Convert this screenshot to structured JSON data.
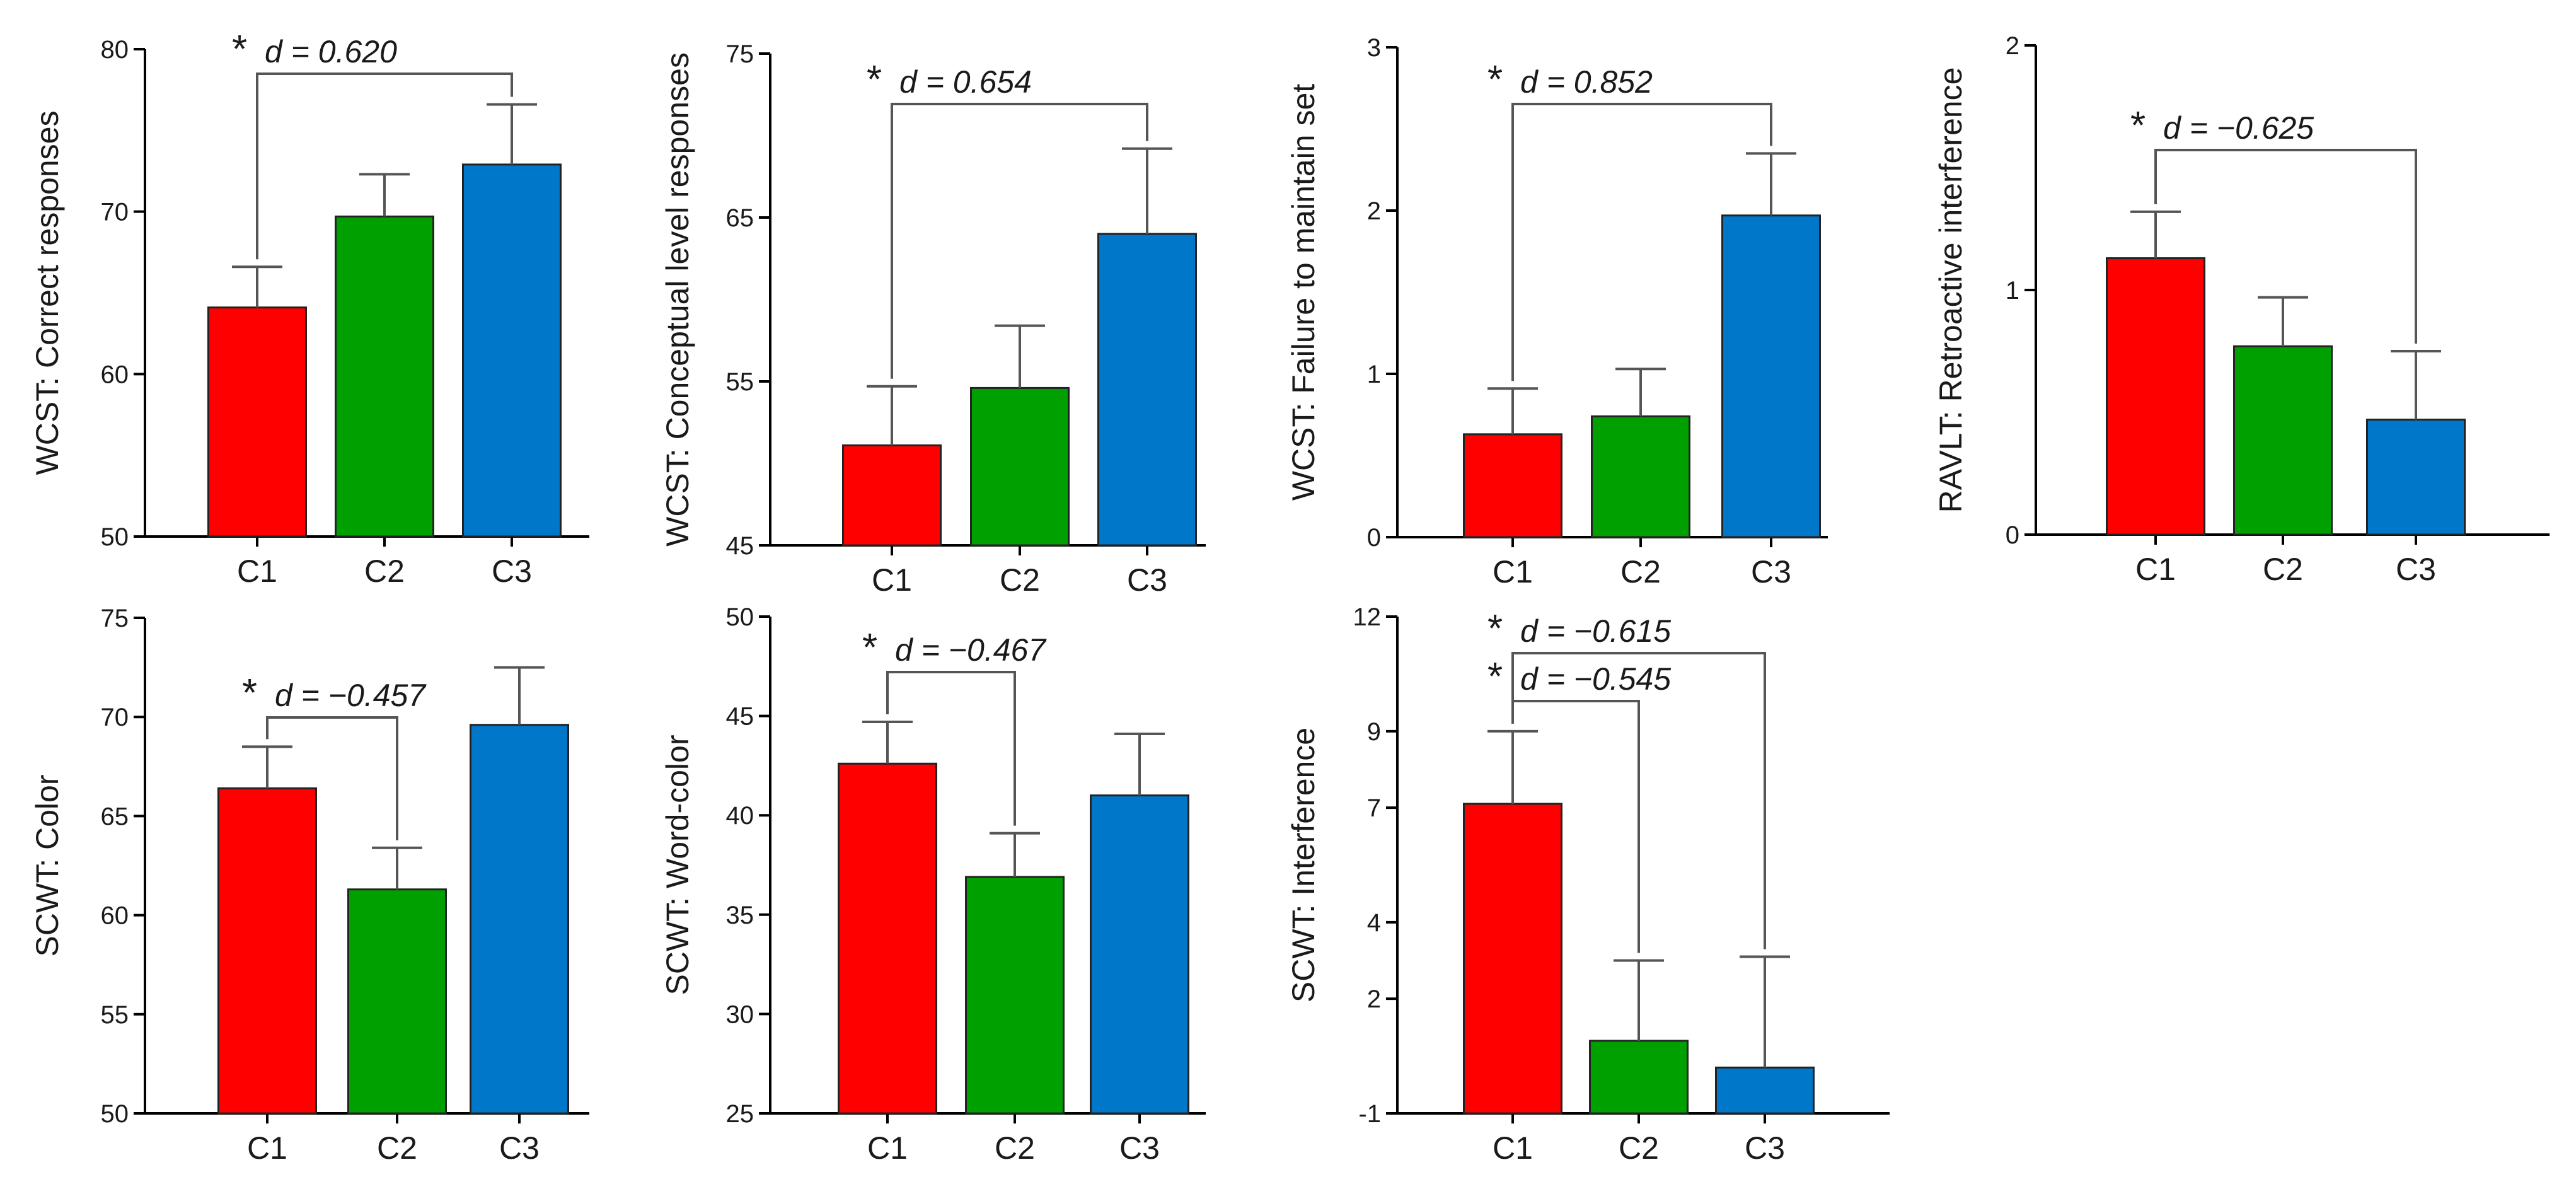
{
  "colors": {
    "C1": "#ff0000",
    "C2": "#00a000",
    "C3": "#0077c8",
    "axis": "#000000",
    "bracket": "#555555",
    "errorbar": "#555555"
  },
  "chart_data": [
    {
      "id": "wcst-correct",
      "type": "bar",
      "title": "",
      "ylabel": "WCST: Correct responses",
      "ylim": [
        50,
        80
      ],
      "yticks": [
        50,
        60,
        70,
        80
      ],
      "categories": [
        "C1",
        "C2",
        "C3"
      ],
      "values": [
        64.1,
        69.7,
        72.9
      ],
      "errors": [
        2.5,
        2.6,
        3.7
      ],
      "significance": [
        {
          "from": 0,
          "to": 2,
          "star": "*",
          "label": "d = 0.620"
        }
      ]
    },
    {
      "id": "wcst-conceptual",
      "type": "bar",
      "title": "",
      "ylabel": "WCST: Conceptual level responses",
      "ylim": [
        45,
        75
      ],
      "yticks": [
        45,
        55,
        65,
        75
      ],
      "categories": [
        "C1",
        "C2",
        "C3"
      ],
      "values": [
        51.1,
        54.6,
        64.0
      ],
      "errors": [
        3.6,
        3.8,
        5.2
      ],
      "significance": [
        {
          "from": 0,
          "to": 2,
          "star": "*",
          "label": "d = 0.654"
        }
      ]
    },
    {
      "id": "wcst-failure",
      "type": "bar",
      "title": "",
      "ylabel": "WCST: Failure to maintain set",
      "ylim": [
        0,
        3
      ],
      "yticks": [
        0,
        1,
        2,
        3
      ],
      "categories": [
        "C1",
        "C2",
        "C3"
      ],
      "values": [
        0.63,
        0.74,
        1.97
      ],
      "errors": [
        0.28,
        0.29,
        0.38
      ],
      "significance": [
        {
          "from": 0,
          "to": 2,
          "star": "*",
          "label": "d = 0.852"
        }
      ]
    },
    {
      "id": "ravlt-retroactive",
      "type": "bar",
      "title": "",
      "ylabel": "RAVLT: Retroactive interference",
      "ylim": [
        0,
        2
      ],
      "yticks": [
        0,
        1,
        2
      ],
      "categories": [
        "C1",
        "C2",
        "C3"
      ],
      "values": [
        1.13,
        0.77,
        0.47
      ],
      "errors": [
        0.19,
        0.2,
        0.28
      ],
      "significance": [
        {
          "from": 0,
          "to": 2,
          "star": "*",
          "label": "d = −0.625"
        }
      ]
    },
    {
      "id": "scwt-color",
      "type": "bar",
      "title": "",
      "ylabel": "SCWT: Color",
      "ylim": [
        50,
        75
      ],
      "yticks": [
        50,
        55,
        60,
        65,
        70,
        75
      ],
      "categories": [
        "C1",
        "C2",
        "C3"
      ],
      "values": [
        66.4,
        61.3,
        69.6
      ],
      "errors": [
        2.1,
        2.1,
        2.9
      ],
      "significance": [
        {
          "from": 0,
          "to": 1,
          "star": "*",
          "label": "d = −0.457"
        }
      ]
    },
    {
      "id": "scwt-wordcolor",
      "type": "bar",
      "title": "",
      "ylabel": "SCWT: Word-color",
      "ylim": [
        25,
        50
      ],
      "yticks": [
        25,
        30,
        35,
        40,
        45,
        50
      ],
      "categories": [
        "C1",
        "C2",
        "C3"
      ],
      "values": [
        42.6,
        36.9,
        41.0
      ],
      "errors": [
        2.1,
        2.2,
        3.1
      ],
      "significance": [
        {
          "from": 0,
          "to": 1,
          "star": "*",
          "label": "d = −0.467"
        }
      ]
    },
    {
      "id": "scwt-interference",
      "type": "bar",
      "title": "",
      "ylabel": "SCWT: Interference",
      "ylim": [
        -1,
        12
      ],
      "yticks": [
        -1,
        2,
        4,
        7,
        9,
        12
      ],
      "categories": [
        "C1",
        "C2",
        "C3"
      ],
      "values": [
        7.1,
        0.9,
        0.2
      ],
      "errors": [
        1.9,
        2.1,
        2.9
      ],
      "significance": [
        {
          "from": 0,
          "to": 2,
          "star": "*",
          "label": "d = −0.615"
        },
        {
          "from": 0,
          "to": 1,
          "star": "*",
          "label": "d = −0.545"
        }
      ]
    }
  ]
}
